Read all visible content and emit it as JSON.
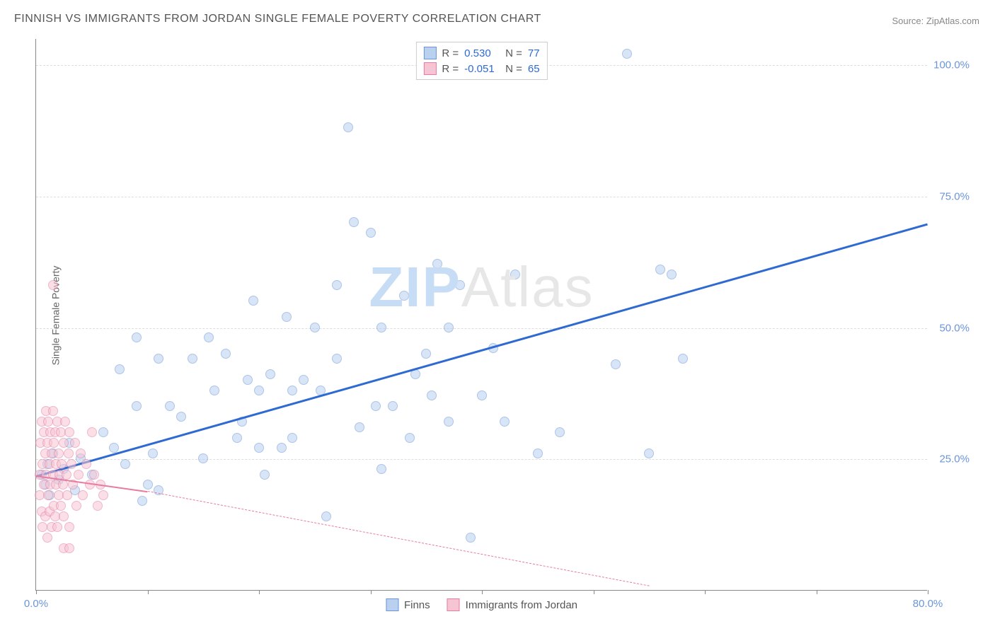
{
  "title": "FINNISH VS IMMIGRANTS FROM JORDAN SINGLE FEMALE POVERTY CORRELATION CHART",
  "source_label": "Source: ",
  "source_name": "ZipAtlas.com",
  "ylabel": "Single Female Poverty",
  "watermark_part1": "ZIP",
  "watermark_part2": "Atlas",
  "chart": {
    "type": "scatter",
    "xlim": [
      0,
      80
    ],
    "ylim": [
      0,
      105
    ],
    "x_ticks": [
      0,
      10,
      20,
      30,
      40,
      50,
      60,
      70,
      80
    ],
    "x_tick_labels": {
      "0": "0.0%",
      "80": "80.0%"
    },
    "y_gridlines": [
      25,
      50,
      75,
      100
    ],
    "y_tick_labels": {
      "25": "25.0%",
      "50": "50.0%",
      "75": "75.0%",
      "100": "100.0%"
    },
    "background_color": "#ffffff",
    "grid_color": "#dddddd",
    "axis_color": "#888888",
    "tick_label_color": "#6b95d8",
    "point_radius": 7,
    "point_opacity": 0.55,
    "series": [
      {
        "name": "Finns",
        "color_fill": "#b9d0ef",
        "color_stroke": "#6b95d8",
        "trend": {
          "x1": 0,
          "y1": 22,
          "x2": 80,
          "y2": 70,
          "color": "#2e6ad1",
          "width": 3,
          "dash": false,
          "extrap_dash": false
        },
        "stats": {
          "R_label": "R =",
          "R": "0.530",
          "N_label": "N =",
          "N": "77"
        },
        "points": [
          [
            0.5,
            22
          ],
          [
            0.8,
            20
          ],
          [
            1,
            24
          ],
          [
            1.2,
            18
          ],
          [
            1.5,
            26
          ],
          [
            2,
            21
          ],
          [
            2.5,
            23
          ],
          [
            3,
            28
          ],
          [
            3.5,
            19
          ],
          [
            4,
            25
          ],
          [
            5,
            22
          ],
          [
            6,
            30
          ],
          [
            7,
            27
          ],
          [
            7.5,
            42
          ],
          [
            8,
            24
          ],
          [
            9,
            35
          ],
          [
            9.5,
            17
          ],
          [
            10,
            20
          ],
          [
            10.5,
            26
          ],
          [
            11,
            19
          ],
          [
            12,
            35
          ],
          [
            13,
            33
          ],
          [
            14,
            44
          ],
          [
            15,
            25
          ],
          [
            15.5,
            48
          ],
          [
            16,
            38
          ],
          [
            17,
            45
          ],
          [
            18,
            29
          ],
          [
            18.5,
            32
          ],
          [
            19,
            40
          ],
          [
            19.5,
            55
          ],
          [
            20,
            38
          ],
          [
            20.5,
            22
          ],
          [
            21,
            41
          ],
          [
            22,
            27
          ],
          [
            22.5,
            52
          ],
          [
            23,
            29
          ],
          [
            24,
            40
          ],
          [
            25,
            50
          ],
          [
            25.5,
            38
          ],
          [
            26,
            14
          ],
          [
            27,
            58
          ],
          [
            28,
            88
          ],
          [
            28.5,
            70
          ],
          [
            29,
            31
          ],
          [
            30,
            68
          ],
          [
            30.5,
            35
          ],
          [
            31,
            23
          ],
          [
            32,
            35
          ],
          [
            33,
            56
          ],
          [
            33.5,
            29
          ],
          [
            34,
            41
          ],
          [
            35,
            45
          ],
          [
            35.5,
            37
          ],
          [
            36,
            62
          ],
          [
            37,
            32
          ],
          [
            38,
            58
          ],
          [
            39,
            10
          ],
          [
            40,
            37
          ],
          [
            41,
            46
          ],
          [
            42,
            32
          ],
          [
            43,
            60
          ],
          [
            45,
            26
          ],
          [
            47,
            30
          ],
          [
            52,
            43
          ],
          [
            53,
            102
          ],
          [
            55,
            26
          ],
          [
            56,
            61
          ],
          [
            57,
            60
          ],
          [
            58,
            44
          ],
          [
            9,
            48
          ],
          [
            11,
            44
          ],
          [
            20,
            27
          ],
          [
            23,
            38
          ],
          [
            27,
            44
          ],
          [
            31,
            50
          ],
          [
            37,
            50
          ]
        ]
      },
      {
        "name": "Immigrants from Jordan",
        "color_fill": "#f6c5d3",
        "color_stroke": "#e77ba0",
        "trend": {
          "x1": 0,
          "y1": 22,
          "x2": 10,
          "y2": 19,
          "color": "#e77ba0",
          "width": 2.5,
          "dash": false,
          "extrap": {
            "x1": 10,
            "y1": 19,
            "x2": 55,
            "y2": 1,
            "dash": true
          }
        },
        "stats": {
          "R_label": "R =",
          "R": "-0.051",
          "N_label": "N =",
          "N": "65"
        },
        "points": [
          [
            0.3,
            22
          ],
          [
            0.3,
            18
          ],
          [
            0.4,
            28
          ],
          [
            0.5,
            15
          ],
          [
            0.5,
            32
          ],
          [
            0.6,
            24
          ],
          [
            0.6,
            12
          ],
          [
            0.7,
            30
          ],
          [
            0.7,
            20
          ],
          [
            0.8,
            26
          ],
          [
            0.8,
            14
          ],
          [
            0.9,
            34
          ],
          [
            0.9,
            22
          ],
          [
            1.0,
            10
          ],
          [
            1.0,
            28
          ],
          [
            1.1,
            18
          ],
          [
            1.1,
            32
          ],
          [
            1.2,
            24
          ],
          [
            1.2,
            15
          ],
          [
            1.3,
            30
          ],
          [
            1.3,
            20
          ],
          [
            1.4,
            12
          ],
          [
            1.4,
            26
          ],
          [
            1.5,
            34
          ],
          [
            1.5,
            22
          ],
          [
            1.6,
            16
          ],
          [
            1.6,
            28
          ],
          [
            1.7,
            30
          ],
          [
            1.7,
            14
          ],
          [
            1.8,
            24
          ],
          [
            1.8,
            20
          ],
          [
            1.9,
            32
          ],
          [
            1.9,
            12
          ],
          [
            2.0,
            26
          ],
          [
            2.0,
            18
          ],
          [
            2.1,
            22
          ],
          [
            2.2,
            30
          ],
          [
            2.2,
            16
          ],
          [
            2.3,
            24
          ],
          [
            2.4,
            20
          ],
          [
            2.5,
            28
          ],
          [
            2.5,
            14
          ],
          [
            2.6,
            32
          ],
          [
            2.7,
            22
          ],
          [
            2.8,
            18
          ],
          [
            2.9,
            26
          ],
          [
            3.0,
            30
          ],
          [
            3.0,
            12
          ],
          [
            3.2,
            24
          ],
          [
            3.3,
            20
          ],
          [
            3.5,
            28
          ],
          [
            3.6,
            16
          ],
          [
            3.8,
            22
          ],
          [
            4.0,
            26
          ],
          [
            4.2,
            18
          ],
          [
            4.5,
            24
          ],
          [
            4.8,
            20
          ],
          [
            5.0,
            30
          ],
          [
            5.2,
            22
          ],
          [
            5.5,
            16
          ],
          [
            5.8,
            20
          ],
          [
            6.0,
            18
          ],
          [
            2.5,
            8
          ],
          [
            3.0,
            8
          ],
          [
            1.5,
            58
          ]
        ]
      }
    ]
  },
  "legend_bottom": [
    {
      "label": "Finns",
      "fill": "#b9d0ef",
      "stroke": "#6b95d8"
    },
    {
      "label": "Immigrants from Jordan",
      "fill": "#f6c5d3",
      "stroke": "#e77ba0"
    }
  ]
}
